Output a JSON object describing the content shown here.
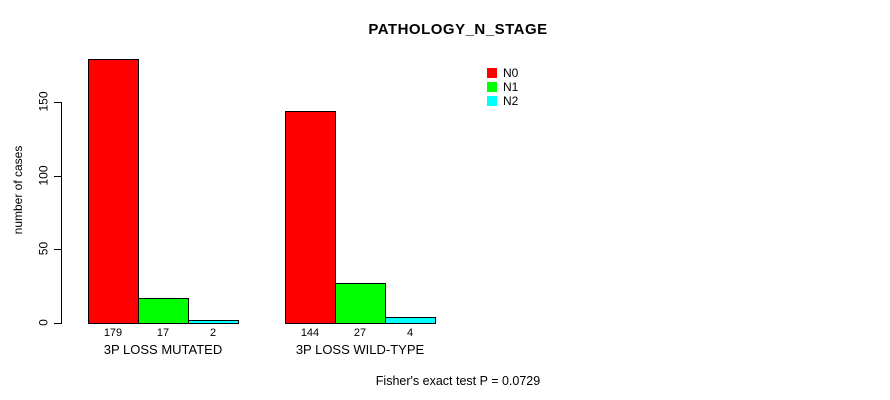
{
  "chart": {
    "title": "PATHOLOGY_N_STAGE",
    "ylabel": "number of cases",
    "footer": "Fisher's exact test P = 0.0729"
  },
  "chart_data": {
    "type": "bar",
    "title": "PATHOLOGY_N_STAGE",
    "xlabel": "",
    "ylabel": "number of cases",
    "categories": [
      "3P LOSS MUTATED",
      "3P LOSS WILD-TYPE"
    ],
    "series": [
      {
        "name": "N0",
        "color": "#ff0000",
        "values": [
          179,
          144
        ]
      },
      {
        "name": "N1",
        "color": "#00ff00",
        "values": [
          17,
          27
        ]
      },
      {
        "name": "N2",
        "color": "#00ffff",
        "values": [
          2,
          4
        ]
      }
    ],
    "bar_value_labels": [
      [
        179,
        17,
        2
      ],
      [
        144,
        27,
        4
      ]
    ],
    "yticks": [
      0,
      50,
      100,
      150
    ],
    "ylim": [
      0,
      185
    ],
    "grid": false,
    "legend_position": "top-right",
    "annotation": "Fisher's exact test P = 0.0729"
  }
}
